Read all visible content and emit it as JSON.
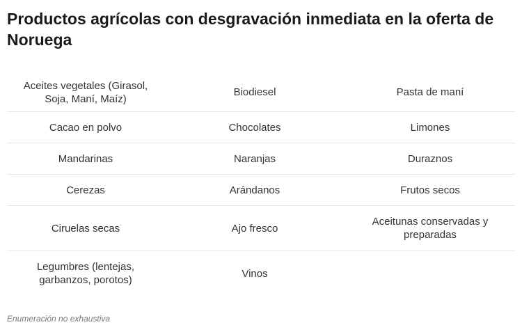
{
  "title": "Productos agrícolas con desgravación inmediata en la oferta de Noruega",
  "rows": [
    [
      "Aceites vegetales (Girasol, Soja, Maní, Maíz)",
      "Biodiesel",
      "Pasta de maní"
    ],
    [
      "Cacao en polvo",
      "Chocolates",
      "Limones"
    ],
    [
      "Mandarinas",
      "Naranjas",
      "Duraznos"
    ],
    [
      "Cerezas",
      "Arándanos",
      "Frutos secos"
    ],
    [
      "Ciruelas secas",
      "Ajo fresco",
      "Aceitunas conservadas y preparadas"
    ],
    [
      "Legumbres (lentejas, garbanzos, porotos)",
      "Vinos",
      ""
    ]
  ],
  "footnote": "Enumeración no exhaustiva"
}
